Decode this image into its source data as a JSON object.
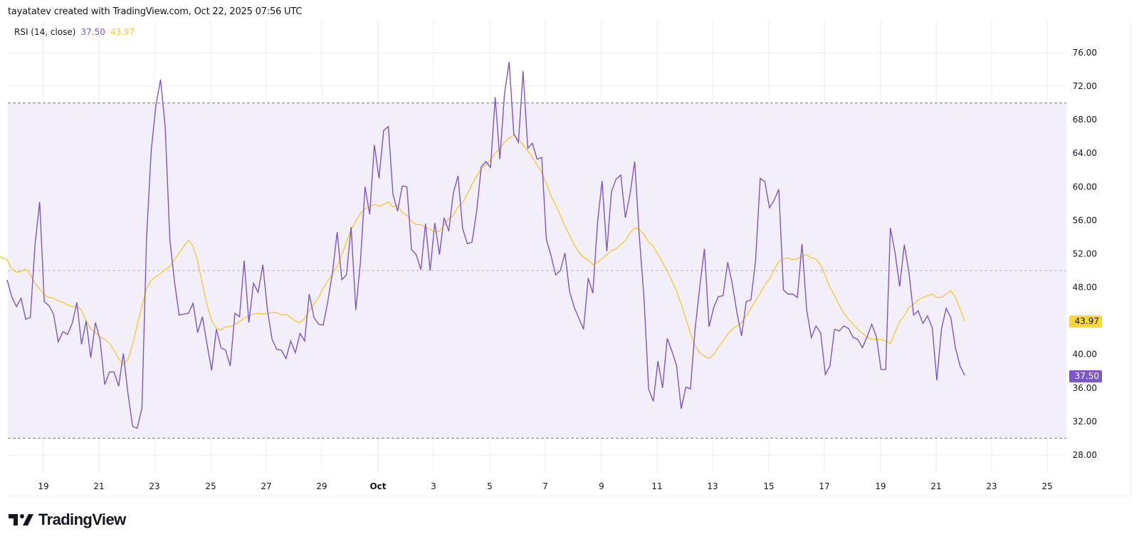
{
  "attribution": "tayatatev created with TradingView.com, Oct 22, 2025 07:56 UTC",
  "legend": {
    "name": "RSI (14, close)",
    "rsi_value": "37.50",
    "ma_value": "43.97"
  },
  "price_tags": {
    "ma": "43.97",
    "rsi": "37.50"
  },
  "colors": {
    "rsi": "#7e57c2",
    "ma": "#f7c634",
    "band_fill": "#f0ecf9",
    "band_line": "#787b86",
    "grid": "#eceaf2"
  },
  "y_axis": {
    "ticks": [
      "76.00",
      "72.00",
      "68.00",
      "64.00",
      "60.00",
      "56.00",
      "52.00",
      "48.00",
      "40.00",
      "36.00",
      "32.00",
      "28.00"
    ]
  },
  "x_axis": {
    "ticks": [
      "19",
      "21",
      "23",
      "25",
      "27",
      "29",
      "Oct",
      "3",
      "5",
      "7",
      "9",
      "11",
      "13",
      "15",
      "17",
      "19",
      "21",
      "23",
      "25"
    ]
  },
  "logo": {
    "text": "TradingView"
  },
  "chart_data": {
    "type": "line",
    "title": "RSI (14, close)",
    "xlabel": "",
    "ylabel": "",
    "ylim": [
      26.5,
      79
    ],
    "bands": {
      "upper": 70,
      "middle": 50,
      "lower": 30
    },
    "x_ticks": [
      "Sep 19",
      "Sep 21",
      "Sep 23",
      "Sep 25",
      "Sep 27",
      "Sep 29",
      "Oct 1",
      "Oct 3",
      "Oct 5",
      "Oct 7",
      "Oct 9",
      "Oct 11",
      "Oct 13",
      "Oct 15",
      "Oct 17",
      "Oct 19",
      "Oct 21",
      "Oct 23",
      "Oct 25"
    ],
    "grid": true,
    "legend_position": "top-left",
    "last_values": {
      "RSI": 37.5,
      "RSI-based MA": 43.97
    },
    "series": [
      {
        "name": "RSI",
        "color": "#7e57c2",
        "values": [
          48.9,
          46.9,
          45.7,
          46.7,
          44.2,
          44.4,
          53.1,
          58.2,
          46.3,
          45.8,
          44.8,
          41.5,
          42.7,
          42.4,
          43.7,
          46.2,
          41.2,
          44.0,
          39.6,
          43.8,
          41.7,
          36.4,
          37.9,
          37.9,
          36.2,
          40.1,
          35.3,
          31.4,
          31.2,
          33.6,
          54.0,
          64.3,
          69.7,
          72.8,
          67.2,
          53.7,
          48.7,
          44.7,
          44.8,
          44.9,
          46.1,
          42.6,
          44.5,
          41.2,
          38.1,
          43.0,
          40.8,
          40.5,
          38.6,
          44.9,
          44.5,
          51.2,
          43.8,
          48.5,
          47.4,
          50.7,
          45.3,
          41.8,
          40.6,
          40.5,
          39.5,
          41.6,
          40.2,
          42.5,
          41.6,
          47.2,
          44.4,
          43.6,
          43.5,
          46.4,
          49.8,
          54.6,
          48.9,
          49.5,
          55.2,
          45.3,
          51.0,
          60.0,
          56.7,
          65.0,
          61.0,
          66.7,
          67.2,
          59.1,
          57.1,
          60.1,
          60.0,
          52.5,
          51.9,
          50.1,
          55.6,
          50.0,
          55.7,
          51.9,
          56.3,
          54.7,
          59.3,
          61.3,
          55.0,
          53.2,
          53.4,
          57.0,
          62.4,
          63.0,
          62.3,
          70.7,
          63.3,
          71.1,
          74.9,
          66.3,
          65.3,
          73.8,
          64.6,
          65.2,
          63.3,
          63.5,
          53.7,
          51.8,
          49.5,
          50.0,
          52.1,
          47.5,
          45.6,
          44.3,
          43.0,
          49.1,
          47.3,
          55.7,
          60.7,
          52.3,
          59.4,
          60.9,
          61.4,
          56.3,
          59.1,
          63.0,
          54.0,
          46.8,
          35.9,
          34.4,
          39.2,
          36.0,
          41.9,
          40.4,
          38.7,
          33.5,
          36.1,
          35.9,
          43.0,
          48.1,
          52.6,
          43.3,
          45.6,
          46.9,
          47.0,
          51.0,
          48.4,
          45.0,
          42.2,
          46.3,
          46.5,
          51.1,
          61.0,
          60.6,
          57.5,
          58.4,
          59.7,
          47.7,
          47.2,
          47.2,
          46.8,
          53.2,
          45.3,
          42.0,
          43.4,
          42.6,
          37.6,
          38.6,
          43.0,
          42.8,
          43.4,
          43.1,
          42.0,
          41.8,
          40.8,
          42.1,
          43.6,
          42.1,
          38.2,
          38.2,
          55.1,
          52.2,
          48.1,
          53.1,
          49.8,
          44.7,
          45.2,
          43.7,
          44.6,
          43.2,
          36.9,
          43.0,
          45.5,
          44.4,
          40.8,
          38.6,
          37.5
        ]
      },
      {
        "name": "RSI-based MA",
        "color": "#f7c634",
        "values": [
          51.2,
          51.8,
          51.5,
          51.3,
          50.2,
          49.8,
          49.9,
          50.2,
          49.5,
          48.5,
          47.8,
          47.1,
          46.8,
          46.7,
          46.4,
          46.2,
          45.9,
          45.7,
          45.7,
          45.3,
          44.0,
          43.1,
          42.6,
          42.1,
          41.8,
          41.3,
          40.5,
          39.5,
          38.8,
          39.4,
          41.2,
          43.5,
          45.8,
          47.9,
          48.8,
          49.3,
          49.6,
          50.1,
          50.5,
          51.3,
          52.1,
          52.9,
          53.6,
          52.9,
          51.1,
          48.4,
          45.9,
          44.0,
          43.1,
          42.9,
          43.3,
          43.3,
          43.6,
          43.9,
          44.3,
          44.6,
          44.8,
          44.9,
          44.8,
          44.9,
          45.0,
          45.0,
          44.7,
          44.8,
          44.4,
          44.0,
          43.8,
          44.3,
          45.2,
          46.0,
          46.8,
          47.9,
          48.8,
          49.6,
          50.5,
          51.9,
          53.4,
          54.9,
          55.9,
          56.8,
          57.4,
          57.6,
          57.9,
          57.7,
          57.9,
          58.2,
          57.6,
          57.8,
          56.9,
          56.6,
          55.9,
          55.5,
          55.5,
          55.2,
          54.9,
          54.6,
          54.7,
          55.4,
          56.2,
          56.6,
          57.6,
          58.1,
          59.1,
          60.3,
          61.3,
          62.2,
          62.6,
          63.2,
          64.0,
          64.6,
          65.3,
          65.8,
          66.2,
          65.7,
          65.0,
          64.3,
          63.5,
          62.6,
          61.7,
          60.4,
          58.9,
          57.8,
          56.6,
          55.3,
          54.2,
          53.1,
          52.2,
          51.6,
          51.3,
          50.7,
          51.0,
          51.4,
          51.9,
          52.4,
          52.6,
          53.1,
          53.6,
          54.5,
          55.1,
          54.9,
          54.3,
          53.4,
          52.9,
          51.9,
          51.0,
          49.9,
          48.8,
          47.6,
          46.0,
          44.3,
          42.5,
          41.0,
          40.2,
          39.8,
          39.5,
          40.0,
          40.9,
          41.6,
          42.4,
          43.0,
          43.4,
          43.8,
          44.6,
          45.5,
          46.4,
          47.3,
          48.3,
          49.0,
          50.1,
          51.1,
          51.4,
          51.5,
          51.3,
          51.4,
          51.7,
          51.9,
          51.5,
          51.4,
          50.7,
          49.4,
          48.0,
          47.0,
          45.9,
          44.9,
          44.2,
          43.6,
          43.0,
          42.5,
          42.1,
          41.8,
          41.8,
          41.8,
          41.6,
          41.3,
          42.6,
          43.9,
          44.6,
          45.6,
          46.0,
          46.5,
          46.8,
          47.0,
          47.2,
          46.8,
          46.8,
          47.2,
          47.6,
          46.8,
          45.4,
          43.97
        ]
      }
    ]
  }
}
